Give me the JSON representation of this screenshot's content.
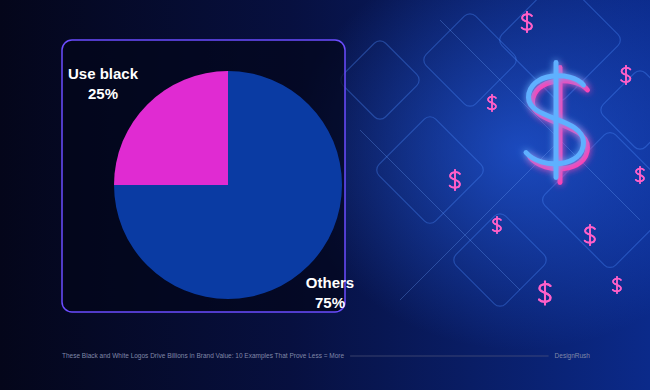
{
  "chart_data": {
    "type": "pie",
    "categories": [
      "Use black",
      "Others"
    ],
    "values": [
      25,
      75
    ],
    "value_labels": [
      "25%",
      "75%"
    ],
    "colors": [
      "#e02bd2",
      "#0a3ba3"
    ],
    "data_labels": true
  },
  "footer": {
    "caption": "These Black and White Logos Drive Billions in Brand Value: 10 Examples That Prove Less = More",
    "brand": "DesignRush"
  }
}
